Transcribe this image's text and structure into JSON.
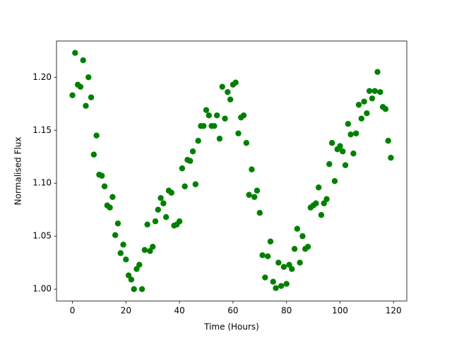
{
  "chart_data": {
    "type": "scatter",
    "xlabel": "Time (Hours)",
    "ylabel": "Normalised Flux",
    "color": "#008000",
    "x": [
      0,
      1,
      2,
      3,
      4,
      5,
      6,
      7,
      8,
      9,
      10,
      11,
      12,
      13,
      14,
      15,
      16,
      17,
      18,
      19,
      20,
      21,
      22,
      23,
      24,
      25,
      26,
      27,
      28,
      29,
      30,
      31,
      32,
      33,
      34,
      35,
      36,
      37,
      38,
      39,
      40,
      41,
      42,
      43,
      44,
      45,
      46,
      47,
      48,
      49,
      50,
      51,
      52,
      53,
      54,
      55,
      56,
      57,
      58,
      59,
      60,
      61,
      62,
      63,
      64,
      65,
      66,
      67,
      68,
      69,
      70,
      71,
      72,
      73,
      74,
      75,
      76,
      77,
      78,
      79,
      80,
      81,
      82,
      83,
      84,
      85,
      86,
      87,
      88,
      89,
      90,
      91,
      92,
      93,
      94,
      95,
      96,
      97,
      98,
      99,
      100,
      101,
      102,
      103,
      104,
      105,
      106,
      107,
      108,
      109,
      110,
      111,
      112,
      113,
      114,
      115,
      116,
      117,
      118,
      119
    ],
    "values": [
      1.183,
      1.223,
      1.193,
      1.191,
      1.216,
      1.173,
      1.2,
      1.181,
      1.127,
      1.145,
      1.108,
      1.107,
      1.097,
      1.079,
      1.077,
      1.087,
      1.051,
      1.062,
      1.034,
      1.042,
      1.028,
      1.013,
      1.009,
      1.0,
      1.019,
      1.023,
      1.0,
      1.037,
      1.061,
      1.036,
      1.04,
      1.064,
      1.075,
      1.086,
      1.081,
      1.068,
      1.093,
      1.091,
      1.06,
      1.061,
      1.064,
      1.114,
      1.097,
      1.122,
      1.121,
      1.13,
      1.099,
      1.14,
      1.154,
      1.154,
      1.169,
      1.164,
      1.154,
      1.154,
      1.164,
      1.142,
      1.191,
      1.161,
      1.186,
      1.179,
      1.193,
      1.195,
      1.147,
      1.162,
      1.164,
      1.138,
      1.089,
      1.113,
      1.087,
      1.093,
      1.072,
      1.032,
      1.011,
      1.031,
      1.045,
      1.007,
      1.001,
      1.025,
      1.003,
      1.021,
      1.005,
      1.023,
      1.019,
      1.038,
      1.057,
      1.025,
      1.05,
      1.038,
      1.04,
      1.077,
      1.079,
      1.081,
      1.096,
      1.07,
      1.081,
      1.085,
      1.118,
      1.138,
      1.102,
      1.132,
      1.135,
      1.13,
      1.117,
      1.156,
      1.146,
      1.128,
      1.147,
      1.174,
      1.161,
      1.177,
      1.166,
      1.187,
      1.18,
      1.187,
      1.205,
      1.186,
      1.172,
      1.17,
      1.14,
      1.124
    ],
    "xlim": [
      -5.95,
      124.95
    ],
    "xticks": [
      0,
      20,
      40,
      60,
      80,
      100,
      120
    ],
    "ylim": [
      0.9888,
      1.2342
    ],
    "yticks": [
      {
        "value": 1,
        "label": "1.00"
      },
      1.05,
      {
        "value": 1.1,
        "label": "1.10"
      },
      1.15,
      {
        "value": 1.2,
        "label": "1.20"
      }
    ]
  }
}
